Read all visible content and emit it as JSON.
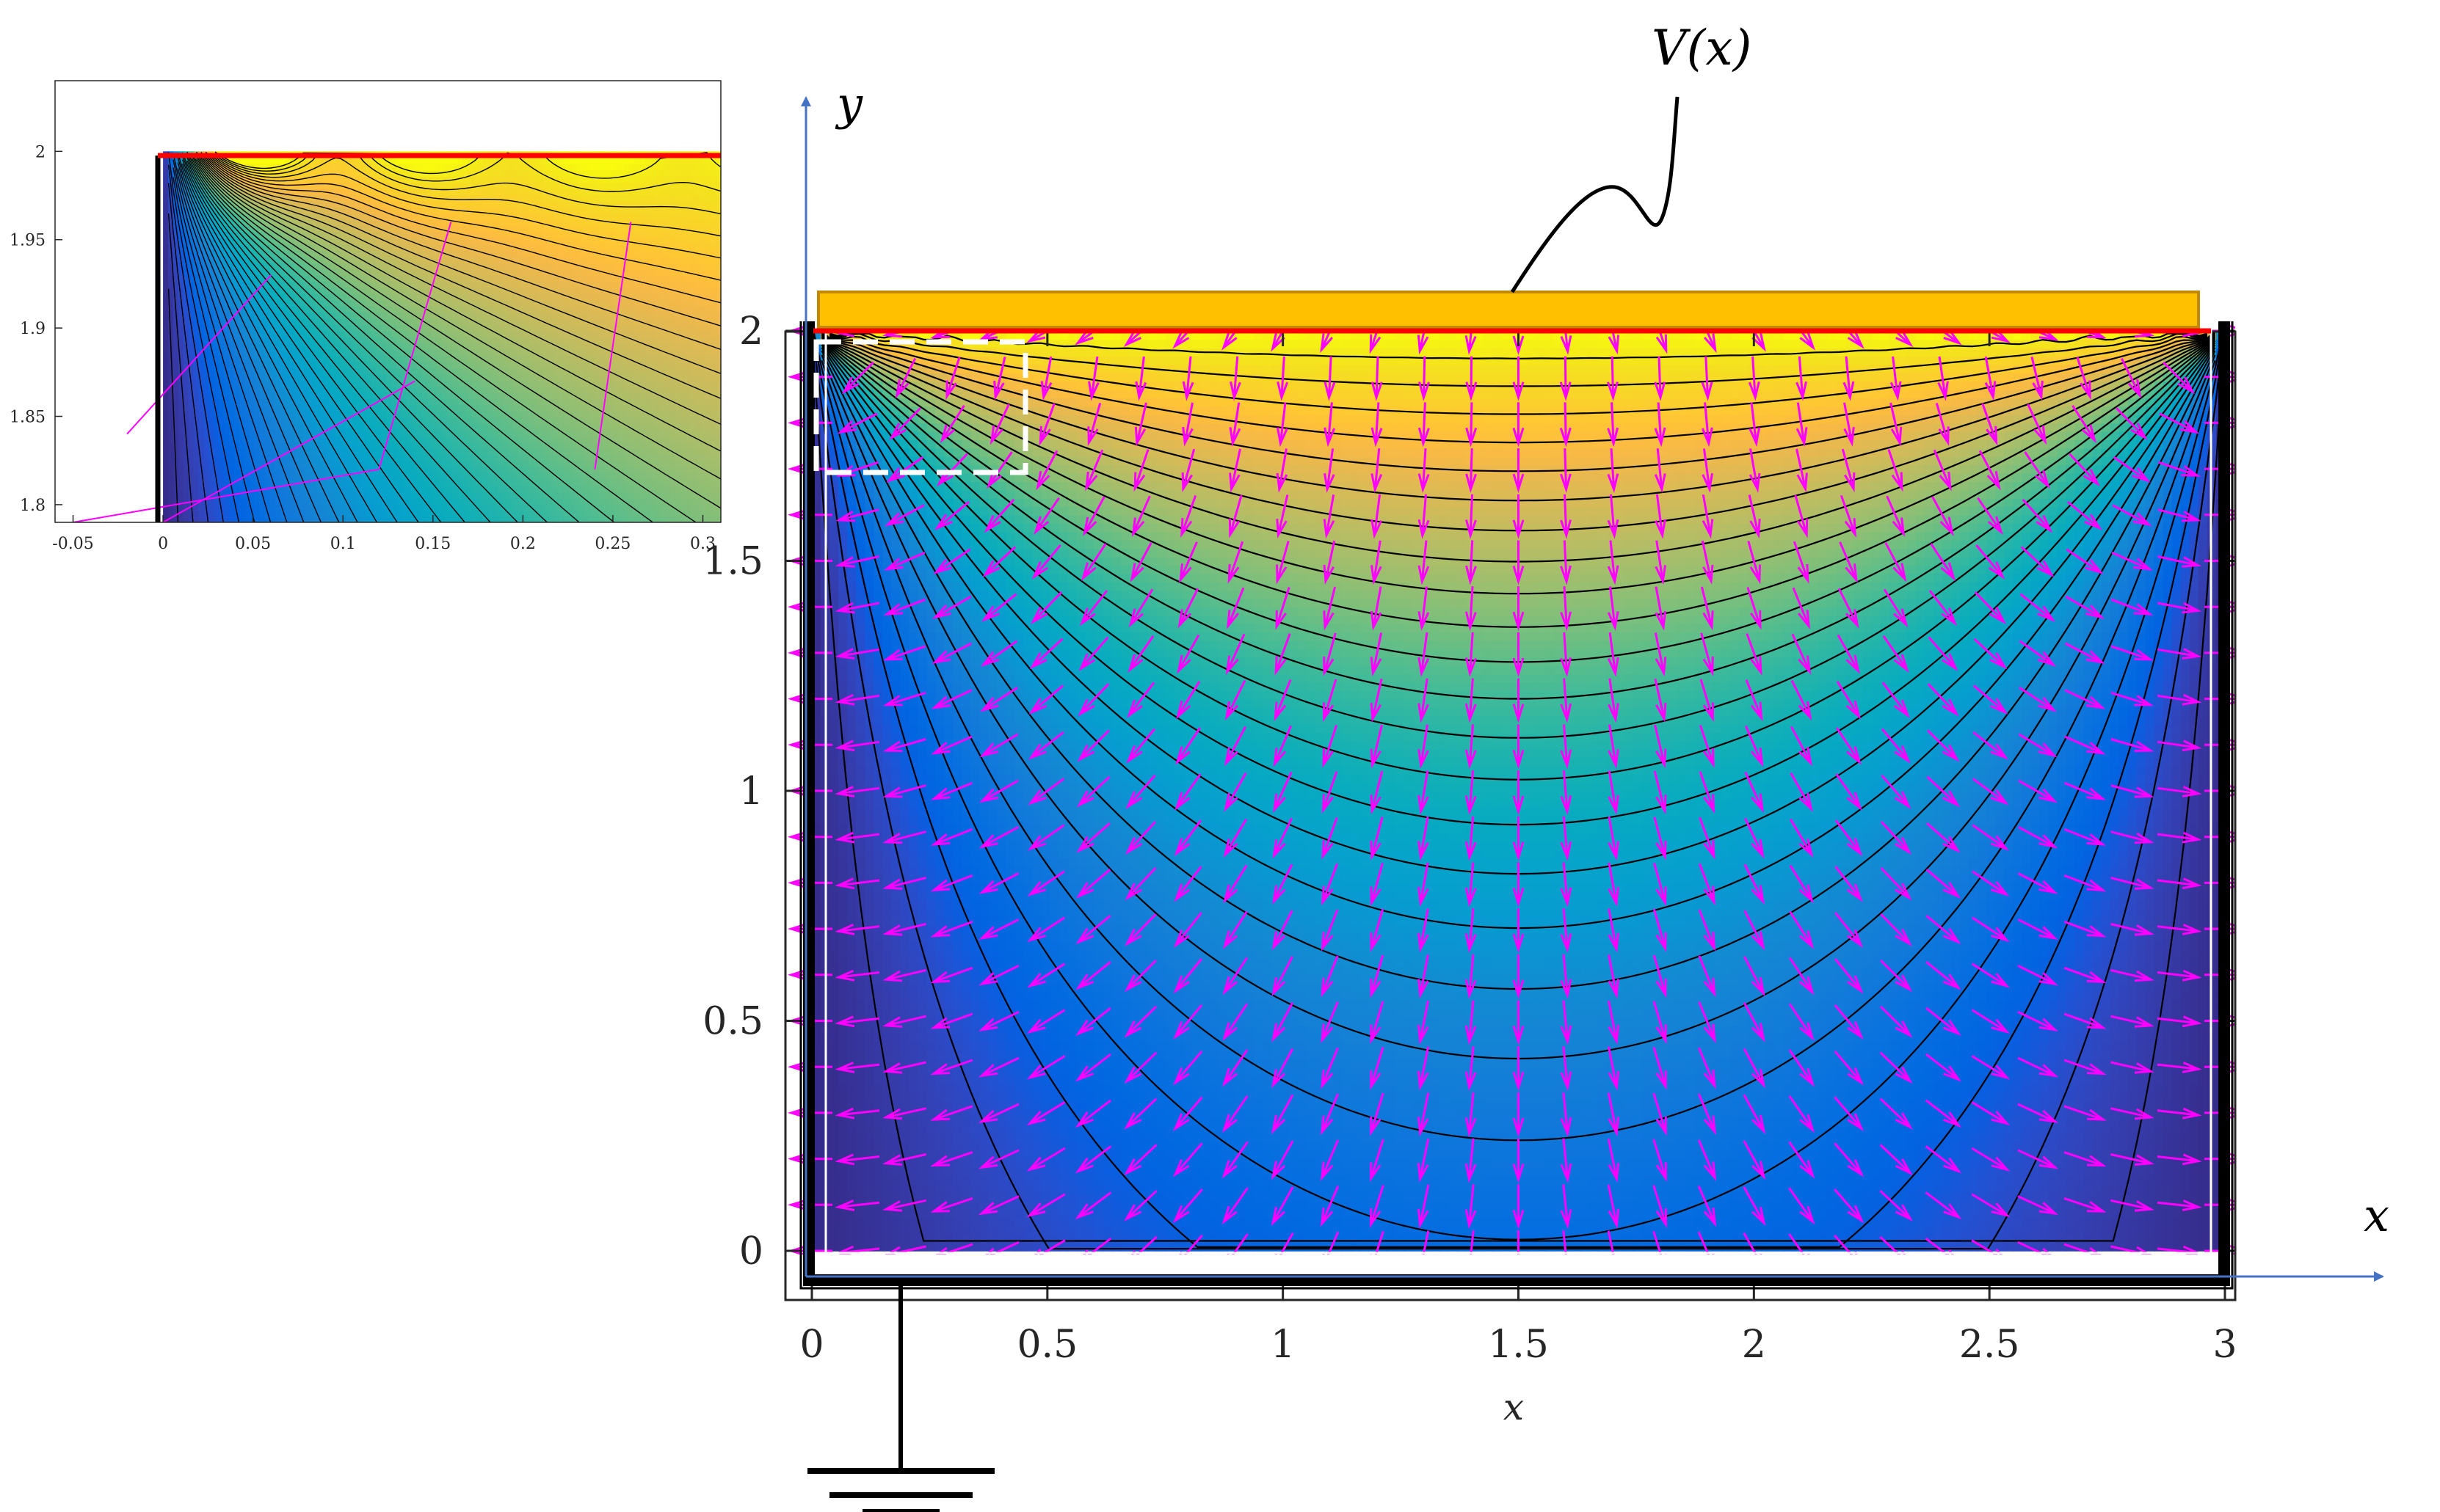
{
  "chart_data": [
    {
      "type": "heatmap",
      "title": "",
      "xlabel": "x",
      "ylabel": "",
      "xlim": [
        0,
        3
      ],
      "ylim": [
        0,
        2
      ],
      "xticks": [
        "0",
        "0.5",
        "1",
        "1.5",
        "2",
        "2.5",
        "3"
      ],
      "yticks": [
        "0",
        "0.5",
        "1",
        "1.5",
        "2"
      ],
      "grid": false,
      "colormap": "parula",
      "contour_levels": 25,
      "overlays": [
        "equipotential contour lines (black)",
        "electric field arrows (magenta)"
      ],
      "boundary": {
        "top": "V(x)",
        "left": 0,
        "right": 0,
        "bottom": 0
      },
      "axis_arrows": {
        "x": "x",
        "y": "y"
      },
      "annotations": [
        "V(x)"
      ],
      "zoom_region": {
        "x": [
          0,
          0.45
        ],
        "y": [
          1.7,
          2
        ]
      }
    },
    {
      "type": "heatmap",
      "title": "",
      "xlabel": "",
      "ylabel": "",
      "xlim": [
        -0.06,
        0.31
      ],
      "ylim": [
        1.79,
        2.04
      ],
      "xticks": [
        "-0.05",
        "0",
        "0.05",
        "0.1",
        "0.15",
        "0.2",
        "0.25",
        "0.3"
      ],
      "yticks": [
        "1.8",
        "1.85",
        "1.9",
        "1.95",
        "2"
      ],
      "colormap": "parula",
      "grid": false
    }
  ],
  "colors": {
    "contour": "#000000",
    "arrows": "#ff00ff",
    "electrode": "#ffc000",
    "electrode_border": "#c08a00",
    "boundary_red": "#ff0000",
    "axis_arrow": "#4472c4",
    "zoom_box": "#ffffff"
  }
}
